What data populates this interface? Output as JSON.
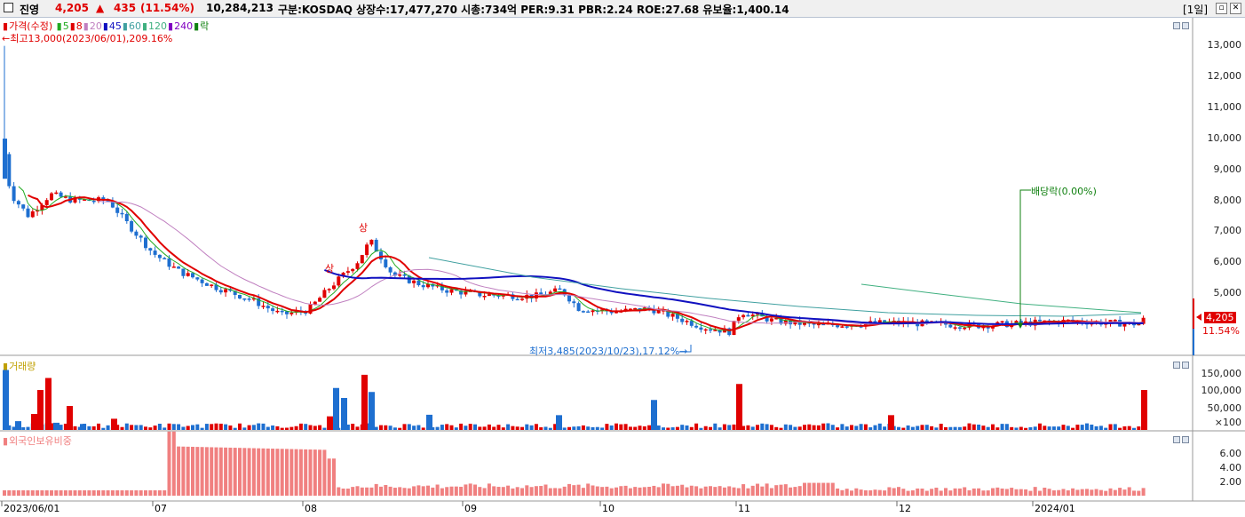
{
  "header": {
    "name": "진영",
    "price": "4,205",
    "arrow": "▲",
    "change": "435",
    "change_pct": "(11.54%)",
    "volume": "10,284,213",
    "info": "구분:KOSDAQ 상장수:17,477,270 시총:734억 PER:9.31 PBR:2.24 ROE:27.68 유보율:1,400.14",
    "period": "[1일]"
  },
  "price_pane": {
    "legend": {
      "price_label": "가격(수정)",
      "ma": [
        {
          "label": "5",
          "color": "#22aa22"
        },
        {
          "label": "8",
          "color": "#e00000"
        },
        {
          "label": "20",
          "color": "#c080c0"
        },
        {
          "label": "45",
          "color": "#1010c0"
        },
        {
          "label": "60",
          "color": "#40a0a0"
        },
        {
          "label": "120",
          "color": "#40b080"
        },
        {
          "label": "240",
          "color": "#8000c0"
        },
        {
          "label": "락",
          "color": "#108010"
        }
      ]
    },
    "high_note": "←최고13,000(2023/06/01),209.16%",
    "low_note": "최저3,485(2023/10/23),17.12%→",
    "dividend_note": "배당락(0.00%)",
    "upper_limit_mark": "상",
    "y_ticks": [
      "13,000",
      "12,000",
      "11,000",
      "10,000",
      "9,000",
      "8,000",
      "7,000",
      "6,000",
      "5,000"
    ],
    "last_price": "4,205",
    "last_pct": "11.54%"
  },
  "volume_pane": {
    "label": "거래량",
    "y_ticks": [
      "150,000",
      "100,000",
      "50,000",
      "×100"
    ]
  },
  "foreign_pane": {
    "label": "외국인보유비중",
    "y_ticks": [
      "6.00",
      "4.00",
      "2.00"
    ]
  },
  "x_axis": [
    "2023/06/01",
    "07",
    "08",
    "09",
    "10",
    "11",
    "12",
    "2024/01"
  ],
  "colors": {
    "up": "#e00000",
    "down": "#1e6fd0",
    "foreign": "#f08080"
  }
}
